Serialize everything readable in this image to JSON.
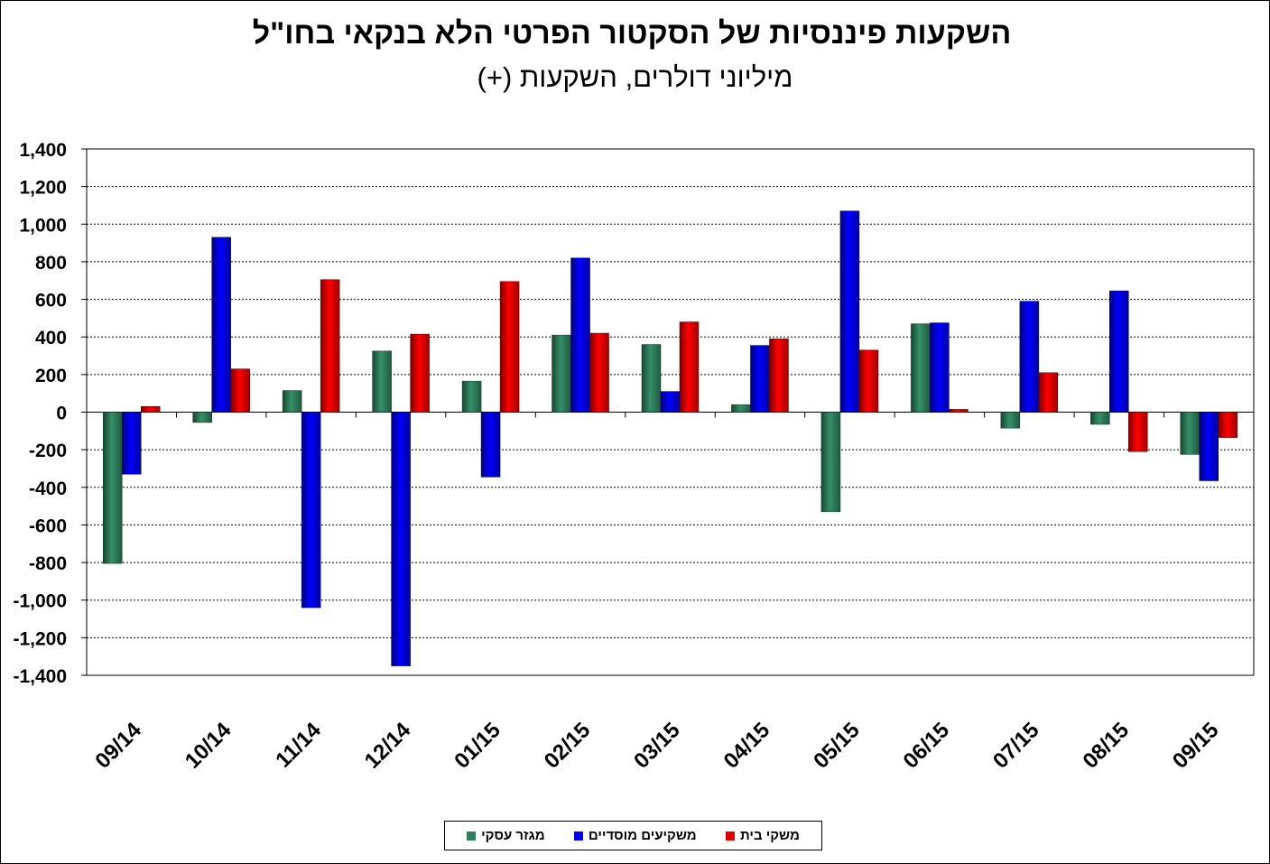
{
  "chart_data": {
    "type": "bar",
    "title": "השקעות פיננסיות של הסקטור הפרטי הלא בנקאי בחו\"ל",
    "subtitle": "מיליוני דולרים, השקעות (+)",
    "categories": [
      "09/14",
      "10/14",
      "11/14",
      "12/14",
      "01/15",
      "02/15",
      "03/15",
      "04/15",
      "05/15",
      "06/15",
      "07/15",
      "08/15",
      "09/15"
    ],
    "series": [
      {
        "name": "מגזר עסקי",
        "color": "#2e7d5b",
        "values": [
          -805,
          -55,
          115,
          325,
          165,
          410,
          360,
          40,
          -530,
          470,
          -85,
          -65,
          -225
        ]
      },
      {
        "name": "משקיעים מוסדיים",
        "color": "#0000e0",
        "values": [
          -330,
          930,
          -1040,
          -1350,
          -345,
          820,
          110,
          355,
          1070,
          475,
          590,
          645,
          -365
        ]
      },
      {
        "name": "משקי בית",
        "color": "#e00000",
        "values": [
          30,
          230,
          705,
          415,
          695,
          420,
          480,
          390,
          330,
          15,
          210,
          -210,
          -135
        ]
      }
    ],
    "ylim": [
      -1400,
      1400
    ],
    "yticks": [
      1400,
      1200,
      1000,
      800,
      600,
      400,
      200,
      0,
      -200,
      -400,
      -600,
      -800,
      -1000,
      -1200,
      -1400
    ],
    "ytick_labels": [
      "1,400",
      "1,200",
      "1,000",
      "800",
      "600",
      "400",
      "200",
      "0",
      "-200",
      "-400",
      "-600",
      "-800",
      "-1,000",
      "-1,200",
      "-1,400"
    ],
    "grid": "horizontal dotted",
    "legend": "bottom"
  }
}
